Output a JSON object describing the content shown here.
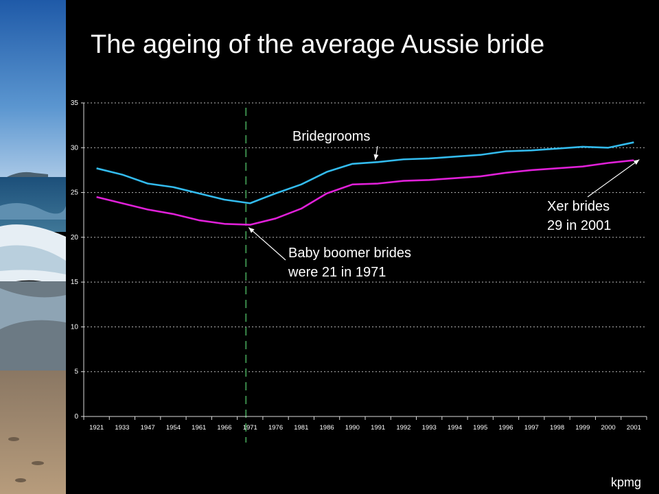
{
  "header": {
    "title": "The ageing of the average Aussie bride"
  },
  "footer": {
    "brand": "kpmg"
  },
  "colors": {
    "background": "#000000",
    "bridegrooms": "#33bbee",
    "brides": "#e020d8",
    "grid": "#bbbbbb",
    "marker_line": "#3a8a4a",
    "text": "#ffffff"
  },
  "chart_data": {
    "type": "line",
    "categories": [
      "1921",
      "1933",
      "1947",
      "1954",
      "1961",
      "1966",
      "1971",
      "1976",
      "1981",
      "1986",
      "1990",
      "1991",
      "1992",
      "1993",
      "1994",
      "1995",
      "1996",
      "1997",
      "1998",
      "1999",
      "2000",
      "2001"
    ],
    "series": [
      {
        "name": "Bridegrooms",
        "values": [
          27.7,
          27.0,
          26.0,
          25.6,
          24.9,
          24.2,
          23.8,
          24.9,
          25.9,
          27.3,
          28.2,
          28.4,
          28.7,
          28.8,
          29.0,
          29.2,
          29.6,
          29.7,
          29.9,
          30.1,
          30.0,
          30.6
        ]
      },
      {
        "name": "",
        "values": [
          24.5,
          23.8,
          23.1,
          22.6,
          21.9,
          21.5,
          21.4,
          22.1,
          23.2,
          24.9,
          25.9,
          26.0,
          26.3,
          26.4,
          26.6,
          26.8,
          27.2,
          27.5,
          27.7,
          27.9,
          28.3,
          28.6
        ]
      }
    ],
    "ylim": [
      0,
      35
    ],
    "yticks": [
      0,
      5,
      10,
      15,
      20,
      25,
      30,
      35
    ],
    "grid": true,
    "vertical_marker_category": "1971",
    "annotations": [
      {
        "id": "bridegrooms",
        "lines": [
          "Bridegrooms"
        ],
        "series": 0,
        "category": "1991"
      },
      {
        "id": "xer",
        "lines": [
          "Xer brides",
          "29 in 2001"
        ],
        "series": 1,
        "category": "2001"
      },
      {
        "id": "boomer",
        "lines": [
          "Baby boomer brides",
          "were 21 in 1971"
        ],
        "series": 1,
        "category": "1971"
      }
    ]
  }
}
